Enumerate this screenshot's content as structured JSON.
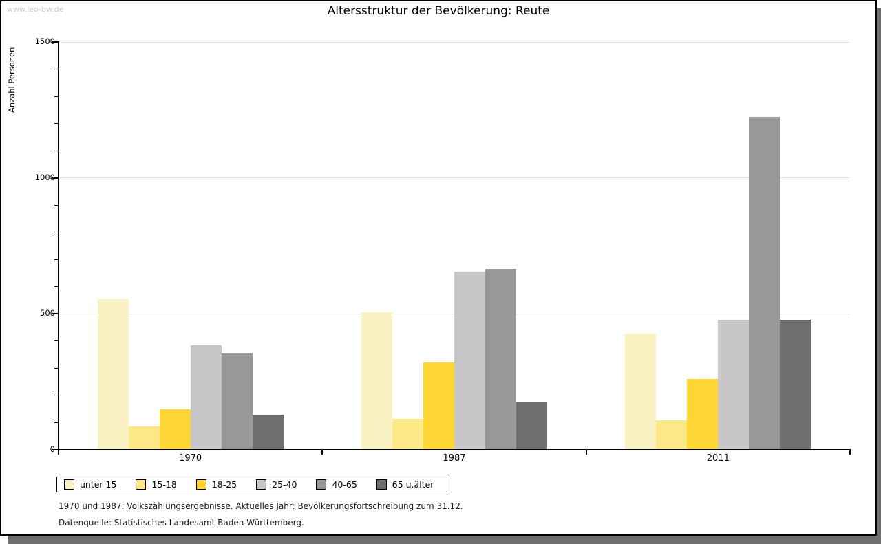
{
  "watermark": "www.leo-bw.de",
  "title": "Altersstruktur der Bevölkerung: Reute",
  "footnotes": [
    "1970 und 1987: Volkszählungsergebnisse. Aktuelles Jahr: Bevölkerungsfortschreibung zum 31.12.",
    "Datenquelle: Statistisches Landesamt Baden-Württemberg."
  ],
  "colors": {
    "page_shadow": "#6E6E6E",
    "gridline": "#DFDFDF",
    "axis": "#000000",
    "watermark_text": "#C9C9C9"
  },
  "chart_data": {
    "type": "bar",
    "title": "Altersstruktur der Bevölkerung: Reute",
    "xlabel": "",
    "ylabel": "Anzahl Personen",
    "ylim": [
      0,
      1500
    ],
    "y_major_ticks": [
      0,
      500,
      1000,
      1500
    ],
    "y_minor_step": 100,
    "grid": "horizontal-major-only",
    "legend_position": "bottom-left",
    "categories": [
      "1970",
      "1987",
      "2011"
    ],
    "series": [
      {
        "name": "unter 15",
        "color": "#FAF2C2",
        "values": [
          555,
          505,
          428
        ]
      },
      {
        "name": "15-18",
        "color": "#FCE886",
        "values": [
          85,
          113,
          110
        ]
      },
      {
        "name": "18-25",
        "color": "#FDD535",
        "values": [
          150,
          320,
          260
        ]
      },
      {
        "name": "25-40",
        "color": "#C7C7C7",
        "values": [
          385,
          655,
          478
        ]
      },
      {
        "name": "40-65",
        "color": "#989898",
        "values": [
          355,
          665,
          1225
        ]
      },
      {
        "name": "65 u.älter",
        "color": "#6E6E6E",
        "values": [
          130,
          178,
          478
        ]
      }
    ]
  }
}
